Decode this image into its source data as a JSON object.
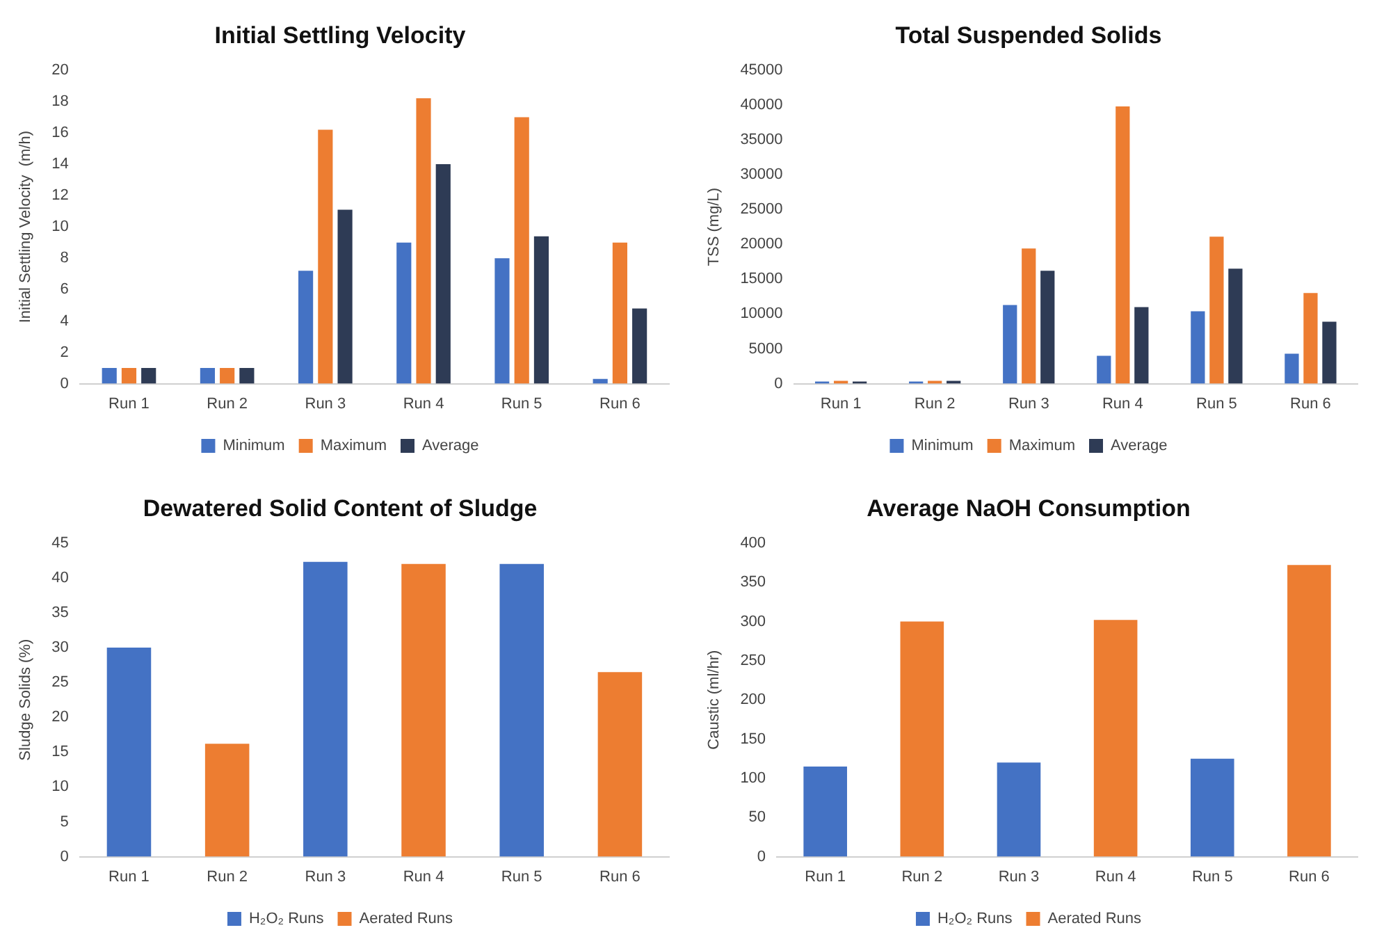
{
  "chart_data": [
    {
      "type": "bar",
      "title": "Initial Settling Velocity",
      "ylabel": "Initial Settling Velocity  (m/h)",
      "categories": [
        "Run 1",
        "Run 2",
        "Run 3",
        "Run 4",
        "Run 5",
        "Run 6"
      ],
      "series": [
        {
          "name": "Minimum",
          "color": "#4472c4",
          "values": [
            1,
            1,
            7.2,
            9,
            8,
            0.3
          ]
        },
        {
          "name": "Maximum",
          "color": "#ed7d31",
          "values": [
            1,
            1,
            16.2,
            18.2,
            17,
            9
          ]
        },
        {
          "name": "Average",
          "color": "#2e3b55",
          "values": [
            1,
            1,
            11.1,
            14,
            9.4,
            4.8
          ]
        }
      ],
      "ylim": [
        0,
        20
      ],
      "yticks": [
        0,
        2,
        4,
        6,
        8,
        10,
        12,
        14,
        16,
        18,
        20
      ],
      "legend": "bottom"
    },
    {
      "type": "bar",
      "title": "Total Suspended Solids",
      "ylabel": "TSS (mg/L)",
      "categories": [
        "Run 1",
        "Run 2",
        "Run 3",
        "Run 4",
        "Run 5",
        "Run 6"
      ],
      "series": [
        {
          "name": "Minimum",
          "color": "#4472c4",
          "values": [
            300,
            300,
            11300,
            4000,
            10400,
            4300
          ]
        },
        {
          "name": "Maximum",
          "color": "#ed7d31",
          "values": [
            400,
            400,
            19400,
            39800,
            21100,
            13000
          ]
        },
        {
          "name": "Average",
          "color": "#2e3b55",
          "values": [
            300,
            400,
            16200,
            11000,
            16500,
            8900
          ]
        }
      ],
      "ylim": [
        0,
        45000
      ],
      "yticks": [
        0,
        5000,
        10000,
        15000,
        20000,
        25000,
        30000,
        35000,
        40000,
        45000
      ],
      "legend": "bottom"
    },
    {
      "type": "bar",
      "title": "Dewatered Solid Content of Sludge",
      "ylabel": "Sludge Solids (%)",
      "categories": [
        "Run 1",
        "Run 2",
        "Run 3",
        "Run 4",
        "Run 5",
        "Run 6"
      ],
      "series": [
        {
          "name": "H₂O₂ Runs",
          "color": "#4472c4",
          "values": [
            30,
            null,
            42.3,
            null,
            42,
            null
          ]
        },
        {
          "name": "Aerated Runs",
          "color": "#ed7d31",
          "values": [
            null,
            16.2,
            null,
            42,
            null,
            26.5
          ]
        }
      ],
      "ylim": [
        0,
        45
      ],
      "yticks": [
        0,
        5,
        10,
        15,
        20,
        25,
        30,
        35,
        40,
        45
      ],
      "legend": "bottom"
    },
    {
      "type": "bar",
      "title": "Average NaOH Consumption",
      "ylabel": "Caustic (ml/hr)",
      "categories": [
        "Run 1",
        "Run 2",
        "Run 3",
        "Run 4",
        "Run 5",
        "Run 6"
      ],
      "series": [
        {
          "name": "H₂O₂ Runs",
          "color": "#4472c4",
          "values": [
            115,
            null,
            120,
            null,
            125,
            null
          ]
        },
        {
          "name": "Aerated Runs",
          "color": "#ed7d31",
          "values": [
            null,
            300,
            null,
            302,
            null,
            372
          ]
        }
      ],
      "ylim": [
        0,
        400
      ],
      "yticks": [
        0,
        50,
        100,
        150,
        200,
        250,
        300,
        350,
        400
      ],
      "legend": "bottom"
    }
  ]
}
